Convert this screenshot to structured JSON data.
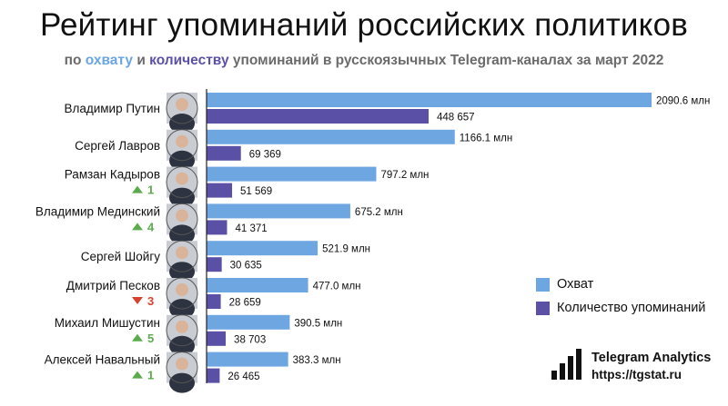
{
  "header": {
    "title": "Рейтинг упоминаний российских политиков",
    "subtitle": {
      "p1": "по ",
      "reach_word": "охвату",
      "p2": " и ",
      "count_word": "количеству",
      "p3": " упоминаний в русскоязычных Telegram-каналах за март 2022"
    }
  },
  "legend": {
    "reach_label": "Охват",
    "count_label": "Количество упоминаний",
    "reach_color": "#6ea6e2",
    "count_color": "#5a51a6"
  },
  "brand": {
    "name": "Telegram Analytics",
    "url": "https://tgstat.ru",
    "icon": "bar-chart-logo-icon"
  },
  "colors": {
    "up": "#5aab4c",
    "down": "#d9412f"
  },
  "chart_data": {
    "type": "bar",
    "orientation": "horizontal",
    "categories": [
      "Владимир Путин",
      "Сергей Лавров",
      "Рамзан Кадыров",
      "Владимир Мединский",
      "Сергей Шойгу",
      "Дмитрий Песков",
      "Михаил Мишустин",
      "Алексей Навальный"
    ],
    "series": [
      {
        "name": "Охват",
        "values": [
          2090.6,
          1166.1,
          797.2,
          675.2,
          521.9,
          477.0,
          390.5,
          383.3
        ],
        "labels": [
          "2090.6 млн",
          "1166.1 млн",
          "797.2 млн",
          "675.2 млн",
          "521.9 млн",
          "477.0 млн",
          "390.5 млн",
          "383.3 млн"
        ]
      },
      {
        "name": "Количество упоминаний",
        "values": [
          448657,
          69369,
          51569,
          41371,
          30635,
          28659,
          38703,
          26465
        ],
        "labels": [
          "448 657",
          "69 369",
          "51 569",
          "41 371",
          "30 635",
          "28 659",
          "38 703",
          "26 465"
        ]
      }
    ],
    "rank_changes": [
      null,
      null,
      {
        "dir": "up",
        "value": "1"
      },
      {
        "dir": "up",
        "value": "4"
      },
      null,
      {
        "dir": "down",
        "value": "3"
      },
      {
        "dir": "up",
        "value": "5"
      },
      {
        "dir": "up",
        "value": "1"
      }
    ],
    "legend_position": "right"
  }
}
